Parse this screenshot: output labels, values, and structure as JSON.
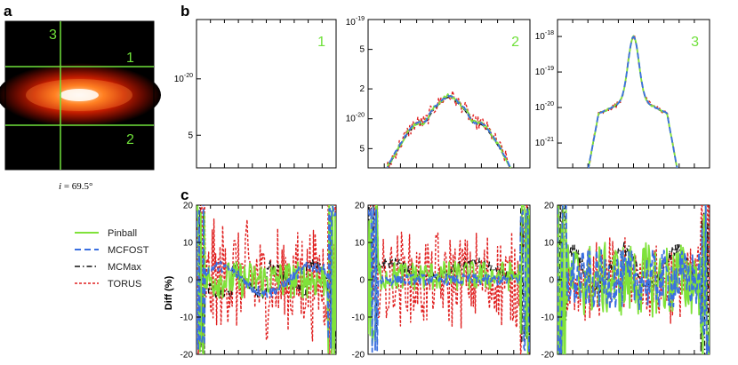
{
  "colors": {
    "pinball": "#7fe23a",
    "mcfost": "#3a6fe0",
    "mcmax": "#111111",
    "torus": "#e02020",
    "cut_line": "#6fe03a",
    "label_green": "#6fe03a"
  },
  "panels": {
    "a": "a",
    "b": "b",
    "c": "c"
  },
  "image_panel": {
    "caption_var": "i",
    "caption_eq": " = 69.5°",
    "cut_labels": [
      "1",
      "2",
      "3"
    ]
  },
  "legend": {
    "entries": [
      {
        "key": "pinball",
        "label": "Pinball",
        "dash": "solid"
      },
      {
        "key": "mcfost",
        "label": "MCFOST",
        "dash": "dashed"
      },
      {
        "key": "mcmax",
        "label": "MCMax",
        "dash": "dashdot"
      },
      {
        "key": "torus",
        "label": "TORUS",
        "dash": "dotted"
      }
    ]
  },
  "chart_data": [
    {
      "type": "line",
      "id": "b1",
      "cut_label": "1",
      "yscale": "log",
      "ylim": [
        1.8e-20,
        1.45e-19
      ],
      "ytick_labels": [
        {
          "base": "5",
          "exp": ""
        },
        {
          "base": "10",
          "exp": "-20"
        }
      ],
      "ytick_values": [
        5e-21,
        1e-20
      ],
      "ytick_label_override": [
        {
          "value": 3.4e-20,
          "base": "5",
          "exp": ""
        },
        {
          "value": 8.5e-20,
          "base": "10",
          "exp": "-20"
        }
      ]
    },
    {
      "type": "line",
      "id": "b2",
      "cut_label": "2",
      "yscale": "log",
      "ylim": [
        3.2e-21,
        1e-19
      ],
      "header_label": {
        "base": "10",
        "exp": "-19"
      },
      "ytick_labels": [
        {
          "value": 5e-20,
          "base": "5",
          "exp": ""
        },
        {
          "value": 2e-20,
          "base": "2",
          "exp": ""
        },
        {
          "value": 1e-20,
          "base": "10",
          "exp": "-20"
        },
        {
          "value": 5e-21,
          "base": "5",
          "exp": ""
        }
      ]
    },
    {
      "type": "line",
      "id": "b3",
      "cut_label": "3",
      "yscale": "log",
      "ylim": [
        2e-22,
        3e-18
      ],
      "ytick_labels": [
        {
          "value": 1e-18,
          "base": "10",
          "exp": "-18"
        },
        {
          "value": 1e-19,
          "base": "10",
          "exp": "-19"
        },
        {
          "value": 1e-20,
          "base": "10",
          "exp": "-20"
        },
        {
          "value": 1e-21,
          "base": "10",
          "exp": "-21"
        }
      ]
    },
    {
      "type": "line",
      "id": "c1",
      "ylabel": "Diff (%)",
      "ylim": [
        -20,
        20
      ],
      "yticks": [
        "20",
        "10",
        "0",
        "-10",
        "-20"
      ]
    },
    {
      "type": "line",
      "id": "c2",
      "ylim": [
        -20,
        20
      ],
      "yticks": [
        "20",
        "10",
        "0",
        "-10",
        "-20"
      ]
    },
    {
      "type": "line",
      "id": "c3",
      "ylim": [
        -20,
        20
      ],
      "yticks": [
        "20",
        "10",
        "0",
        "-10",
        "-20"
      ]
    }
  ]
}
